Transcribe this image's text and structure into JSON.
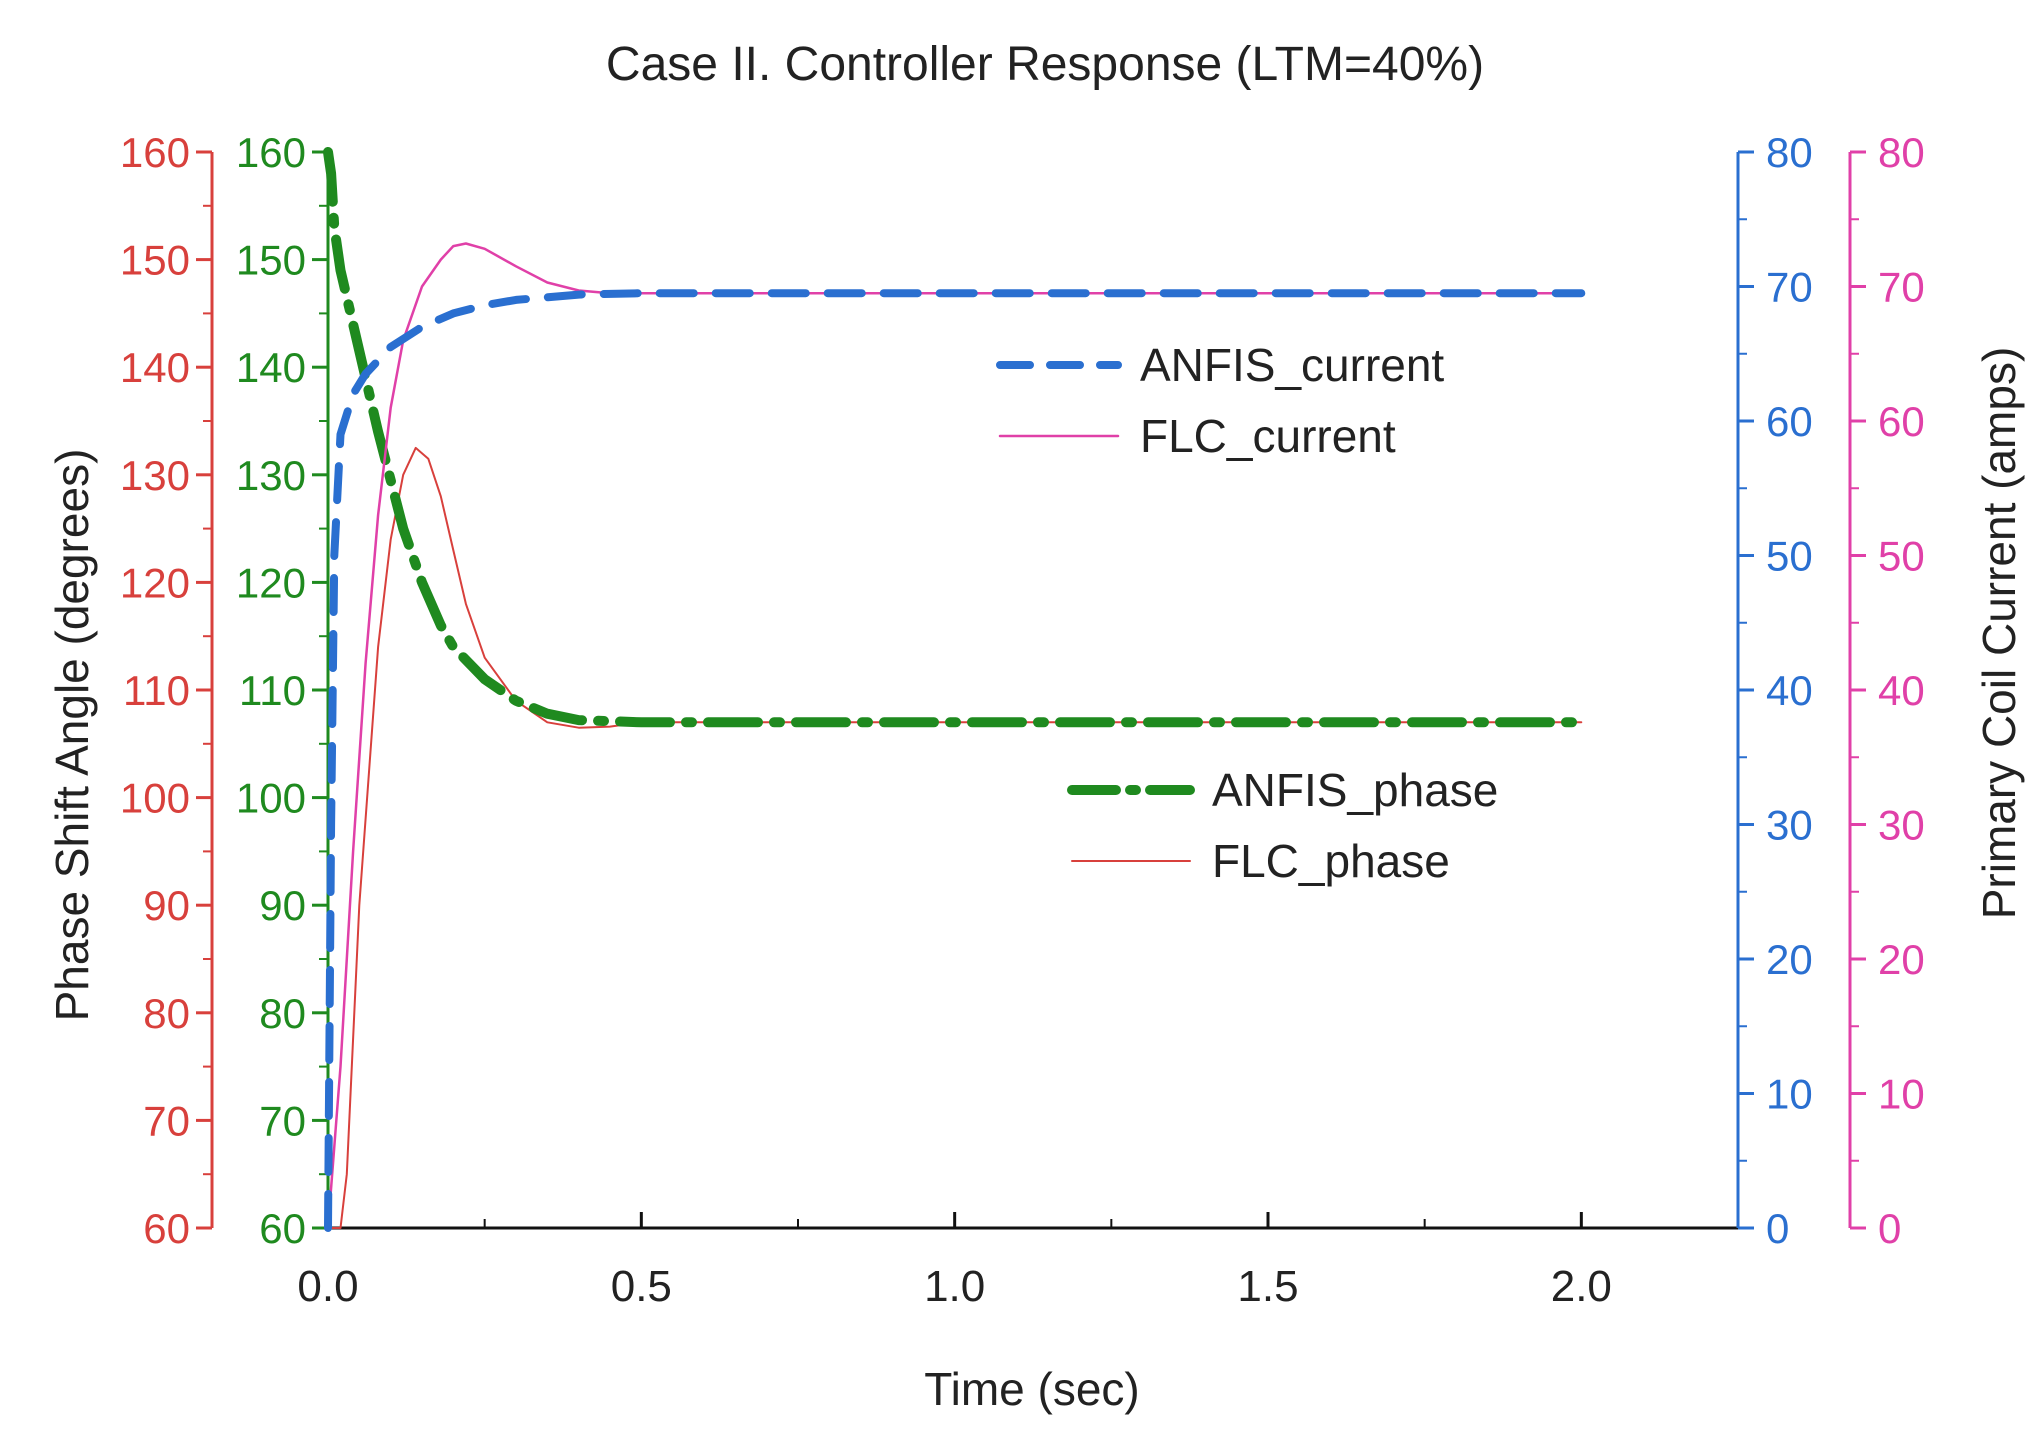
{
  "chart_data": {
    "type": "line",
    "title": "Case II. Controller Response (LTM=40%)",
    "xlabel": "Time (sec)",
    "ylabel_left": "Phase Shift Angle (degrees)",
    "ylabel_right": "Primary Coil Current (amps)",
    "xlim": [
      0,
      2.25
    ],
    "x_ticks": [
      "0.0",
      "0.5",
      "1.0",
      "1.5",
      "2.0"
    ],
    "axes": [
      {
        "id": "phase-outer",
        "range": [
          60,
          160
        ],
        "ticks": [
          "160",
          "150",
          "140",
          "130",
          "120",
          "110",
          "100",
          "90",
          "80",
          "70",
          "60"
        ],
        "color": "#d8403c"
      },
      {
        "id": "phase-inner",
        "range": [
          60,
          160
        ],
        "ticks": [
          "160",
          "150",
          "140",
          "130",
          "120",
          "110",
          "100",
          "90",
          "80",
          "70",
          "60"
        ],
        "color": "#1f8a1f"
      },
      {
        "id": "current-inner",
        "range": [
          0,
          80
        ],
        "ticks": [
          "80",
          "70",
          "60",
          "50",
          "40",
          "30",
          "20",
          "10",
          "0"
        ],
        "color": "#2a6fd0"
      },
      {
        "id": "current-outer",
        "range": [
          0,
          80
        ],
        "ticks": [
          "80",
          "70",
          "60",
          "50",
          "40",
          "30",
          "20",
          "10",
          "0"
        ],
        "color": "#e040a8"
      }
    ],
    "series": [
      {
        "name": "ANFIS_current",
        "axis": "current-inner",
        "color": "#2a6fd0",
        "style": "dashed",
        "x": [
          0,
          0.005,
          0.01,
          0.02,
          0.04,
          0.06,
          0.08,
          0.1,
          0.15,
          0.2,
          0.25,
          0.3,
          0.35,
          0.4,
          0.5,
          0.7,
          1.0,
          1.5,
          2.0
        ],
        "y": [
          0,
          30,
          50,
          59,
          62,
          63.5,
          64.5,
          65.5,
          67,
          68,
          68.6,
          69,
          69.2,
          69.4,
          69.5,
          69.5,
          69.5,
          69.5,
          69.5
        ]
      },
      {
        "name": "FLC_current",
        "axis": "current-outer",
        "color": "#e040a8",
        "style": "solid",
        "x": [
          0,
          0.02,
          0.04,
          0.06,
          0.08,
          0.1,
          0.12,
          0.15,
          0.18,
          0.2,
          0.22,
          0.25,
          0.3,
          0.35,
          0.4,
          0.45,
          0.5,
          0.7,
          1.0,
          1.5,
          2.0
        ],
        "y": [
          0,
          12,
          28,
          42,
          53,
          61,
          66,
          70,
          72,
          73,
          73.2,
          72.8,
          71.5,
          70.3,
          69.7,
          69.5,
          69.5,
          69.5,
          69.5,
          69.5,
          69.5
        ]
      },
      {
        "name": "ANFIS_phase",
        "axis": "phase-inner",
        "color": "#1f8a1f",
        "style": "dash-dot",
        "x": [
          0,
          0.005,
          0.01,
          0.02,
          0.04,
          0.06,
          0.08,
          0.1,
          0.12,
          0.15,
          0.18,
          0.2,
          0.25,
          0.3,
          0.35,
          0.4,
          0.5,
          0.7,
          1.0,
          1.5,
          2.0
        ],
        "y": [
          160,
          158,
          153,
          149,
          144,
          139,
          134,
          129.5,
          125,
          120,
          116,
          114,
          111,
          109,
          107.8,
          107.2,
          107,
          107,
          107,
          107,
          107
        ]
      },
      {
        "name": "FLC_phase",
        "axis": "phase-outer",
        "color": "#d8403c",
        "style": "solid",
        "x": [
          0,
          0.02,
          0.03,
          0.05,
          0.08,
          0.1,
          0.12,
          0.14,
          0.16,
          0.18,
          0.2,
          0.22,
          0.25,
          0.3,
          0.35,
          0.4,
          0.45,
          0.5,
          0.7,
          1.0,
          1.5,
          2.0
        ],
        "y": [
          60,
          60,
          65,
          90,
          114,
          124,
          130,
          132.5,
          131.5,
          128,
          123,
          118,
          113,
          109,
          107,
          106.5,
          106.6,
          107,
          107,
          107,
          107,
          107
        ]
      }
    ]
  }
}
